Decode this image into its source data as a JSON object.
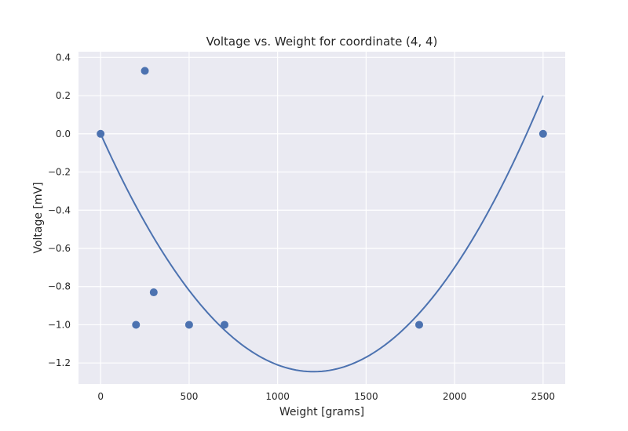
{
  "chart_data": {
    "type": "scatter",
    "title": "Voltage vs. Weight for coordinate (4, 4)",
    "xlabel": "Weight [grams]",
    "ylabel": "Voltage [mV]",
    "xlim": [
      -125,
      2625
    ],
    "ylim": [
      -1.31,
      0.43
    ],
    "xticks": [
      0,
      500,
      1000,
      1500,
      2000,
      2500
    ],
    "yticks": [
      0.4,
      0.2,
      0.0,
      -0.2,
      -0.4,
      -0.6,
      -0.8,
      -1.0,
      -1.2
    ],
    "xtick_labels": [
      "0",
      "500",
      "1000",
      "1500",
      "2000",
      "2500"
    ],
    "ytick_labels": [
      "0.4",
      "0.2",
      "0.0",
      "−0.2",
      "−0.4",
      "−0.6",
      "−0.8",
      "−1.0",
      "−1.2"
    ],
    "grid": true,
    "series": [
      {
        "kind": "scatter",
        "color": "#4c72b0",
        "points": [
          {
            "x": 0,
            "y": 0.0
          },
          {
            "x": 200,
            "y": -1.0
          },
          {
            "x": 250,
            "y": 0.33
          },
          {
            "x": 300,
            "y": -0.83
          },
          {
            "x": 500,
            "y": -1.0
          },
          {
            "x": 700,
            "y": -1.0
          },
          {
            "x": 1800,
            "y": -1.0
          },
          {
            "x": 2500,
            "y": 0.0
          }
        ]
      },
      {
        "kind": "line",
        "color": "#4c72b0",
        "fit": {
          "form": "quadratic",
          "a": 8.6e-07,
          "b": -0.00207,
          "c": 0.0
        },
        "x_range": [
          0,
          2500
        ]
      }
    ],
    "colors": {
      "plot_background": "#eaeaf2",
      "grid": "#ffffff",
      "accent": "#4c72b0"
    }
  }
}
